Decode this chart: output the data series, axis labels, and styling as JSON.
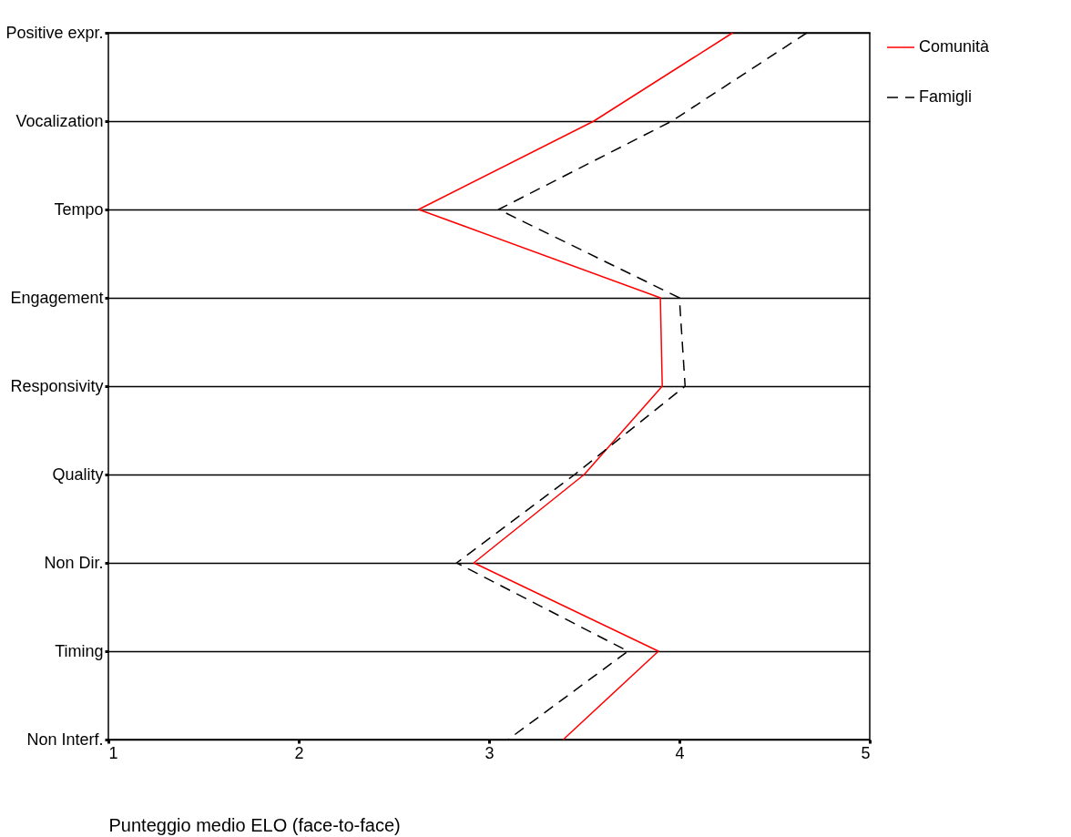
{
  "chart_data": {
    "type": "line",
    "orientation": "horizontal",
    "xlabel": "Punteggio medio ELO (face-to-face)",
    "categories": [
      "Positive expr.",
      "Vocalization",
      "Tempo",
      "Engagement",
      "Responsivity",
      "Quality",
      "Non Dir.",
      "Timing",
      "Non Interf."
    ],
    "xlim": [
      1,
      5
    ],
    "xticks": [
      1,
      2,
      3,
      4,
      5
    ],
    "grid": "y",
    "legend": "right",
    "series": [
      {
        "name": "Comunità",
        "color": "#ff0000",
        "line_style": "solid",
        "values": [
          4.28,
          3.55,
          2.63,
          3.9,
          3.91,
          3.5,
          2.92,
          3.89,
          3.39
        ]
      },
      {
        "name": "Famigli",
        "color": "#000000",
        "line_style": "dashed",
        "values": [
          4.67,
          3.96,
          3.05,
          4.0,
          4.03,
          3.45,
          2.83,
          3.73,
          3.1
        ]
      }
    ]
  }
}
